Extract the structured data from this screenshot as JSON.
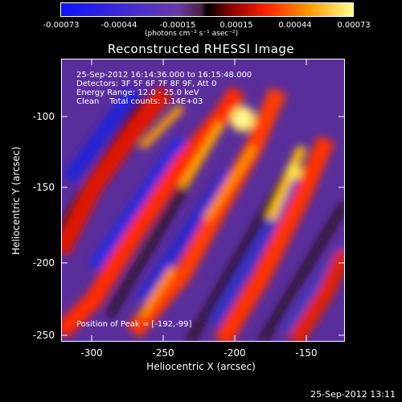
{
  "colorbar": {
    "ticks": [
      "-0.00073",
      "-0.00044",
      "-0.00015",
      "0.00015",
      "0.00044",
      "0.00073"
    ],
    "units": "(photons cm⁻² s⁻¹ asec⁻²)"
  },
  "title": "Reconstructed RHESSI Image",
  "info": {
    "line1": "25-Sep-2012 16:14:36.000 to 16:15:48.000",
    "line2": "Detectors: 3F 5F 6F 7F 8F 9F, Att 0",
    "line3": "Energy Range: 12.0 - 25.0 keV",
    "line4": "Clean    Total counts: 1.14E+03"
  },
  "peak": "Position of Peak = [-192,-99]",
  "axes": {
    "xlabel": "Heliocentric X (arcsec)",
    "ylabel": "Heliocentric Y (arcsec)",
    "xticks": [
      "-300",
      "-250",
      "-200",
      "-150"
    ],
    "yticks": [
      "-100",
      "-150",
      "-200",
      "-250"
    ]
  },
  "timestamp": "25-Sep-2012 13:11",
  "colors": {
    "low": "#0000ff",
    "mid": "#7b3aa8",
    "high": "#ff3000",
    "peak": "#ffff80"
  }
}
